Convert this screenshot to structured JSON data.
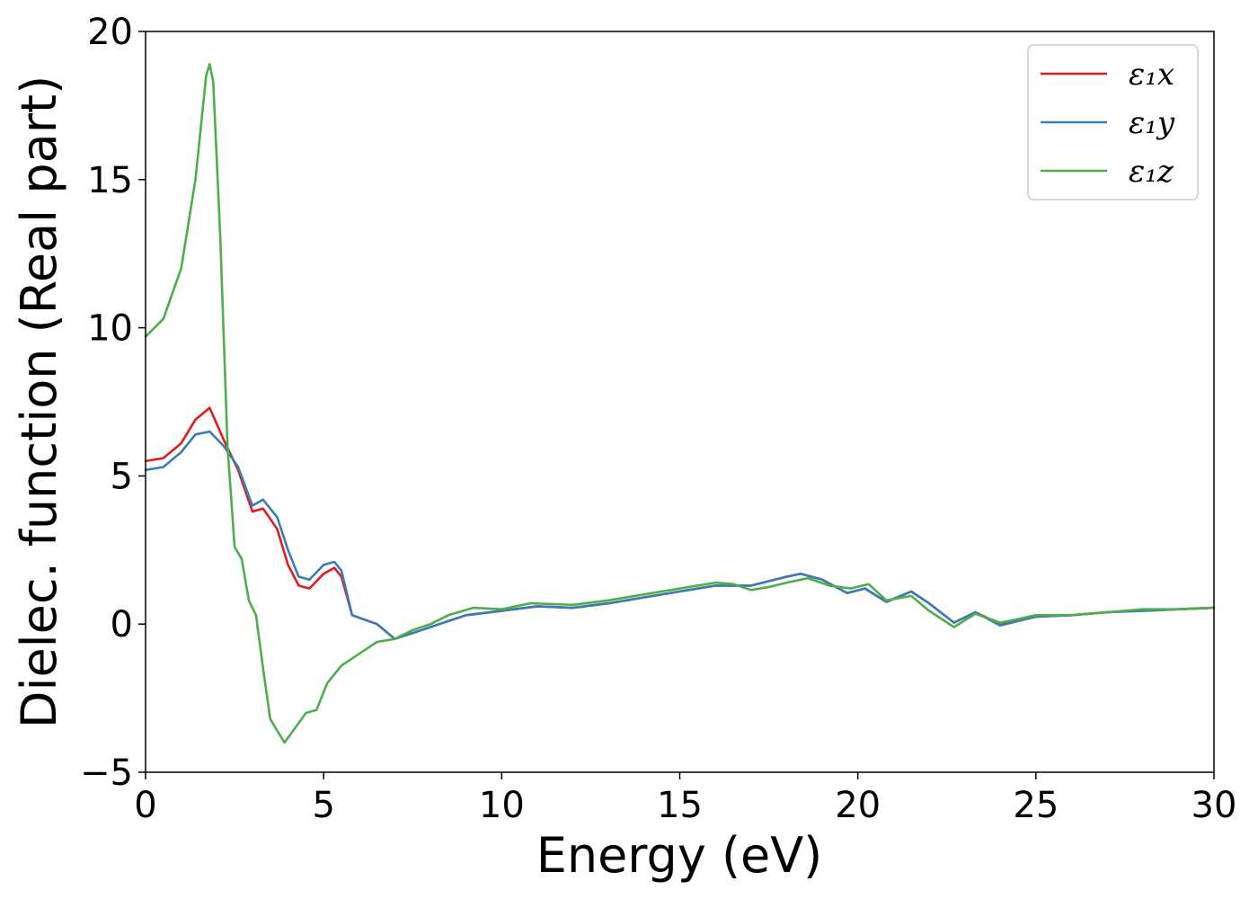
{
  "chart_data": {
    "type": "line",
    "title": "",
    "xlabel": "Energy (eV)",
    "ylabel": "Dielec. function (Real part)",
    "xlim": [
      0,
      30
    ],
    "ylim": [
      -5,
      20
    ],
    "xticks": [
      0,
      5,
      10,
      15,
      20,
      25,
      30
    ],
    "yticks": [
      -5,
      0,
      5,
      10,
      15,
      20
    ],
    "xtick_labels": [
      "0",
      "5",
      "10",
      "15",
      "20",
      "25",
      "30"
    ],
    "ytick_labels": [
      "−5",
      "0",
      "5",
      "10",
      "15",
      "20"
    ],
    "grid": false,
    "legend_position": "top-right",
    "series": [
      {
        "name": "ε₁x",
        "color": "#e41a1c",
        "points": [
          [
            0,
            5.5
          ],
          [
            0.5,
            5.6
          ],
          [
            1,
            6.1
          ],
          [
            1.4,
            6.9
          ],
          [
            1.8,
            7.3
          ],
          [
            2.2,
            6.2
          ],
          [
            2.6,
            5.2
          ],
          [
            3.0,
            3.8
          ],
          [
            3.3,
            3.9
          ],
          [
            3.7,
            3.2
          ],
          [
            4.0,
            2.0
          ],
          [
            4.3,
            1.3
          ],
          [
            4.6,
            1.2
          ],
          [
            5.0,
            1.7
          ],
          [
            5.3,
            1.9
          ],
          [
            5.5,
            1.6
          ],
          [
            5.8,
            0.3
          ],
          [
            6.5,
            0.0
          ],
          [
            7.0,
            -0.5
          ],
          [
            7.5,
            -0.3
          ],
          [
            8.0,
            -0.1
          ],
          [
            8.5,
            0.1
          ],
          [
            9.0,
            0.3
          ],
          [
            10,
            0.45
          ],
          [
            11,
            0.6
          ],
          [
            12,
            0.55
          ],
          [
            13,
            0.7
          ],
          [
            14,
            0.9
          ],
          [
            15,
            1.1
          ],
          [
            16,
            1.3
          ],
          [
            17,
            1.3
          ],
          [
            18,
            1.6
          ],
          [
            18.4,
            1.7
          ],
          [
            19,
            1.5
          ],
          [
            19.7,
            1.05
          ],
          [
            20.2,
            1.2
          ],
          [
            20.8,
            0.75
          ],
          [
            21.5,
            1.1
          ],
          [
            22,
            0.7
          ],
          [
            22.7,
            0.05
          ],
          [
            23.3,
            0.4
          ],
          [
            24.0,
            0.0
          ],
          [
            25,
            0.25
          ],
          [
            26,
            0.3
          ],
          [
            27,
            0.4
          ],
          [
            28,
            0.45
          ],
          [
            29,
            0.5
          ],
          [
            30,
            0.55
          ]
        ]
      },
      {
        "name": "ε₁y",
        "color": "#377eb8",
        "points": [
          [
            0,
            5.2
          ],
          [
            0.5,
            5.3
          ],
          [
            1,
            5.8
          ],
          [
            1.4,
            6.4
          ],
          [
            1.8,
            6.5
          ],
          [
            2.2,
            6.0
          ],
          [
            2.6,
            5.3
          ],
          [
            3.0,
            4.0
          ],
          [
            3.3,
            4.2
          ],
          [
            3.7,
            3.6
          ],
          [
            4.0,
            2.5
          ],
          [
            4.3,
            1.6
          ],
          [
            4.6,
            1.5
          ],
          [
            5.0,
            2.0
          ],
          [
            5.3,
            2.1
          ],
          [
            5.5,
            1.8
          ],
          [
            5.8,
            0.3
          ],
          [
            6.5,
            0.0
          ],
          [
            7.0,
            -0.5
          ],
          [
            7.5,
            -0.3
          ],
          [
            8.0,
            -0.1
          ],
          [
            8.5,
            0.1
          ],
          [
            9.0,
            0.3
          ],
          [
            10,
            0.45
          ],
          [
            11,
            0.6
          ],
          [
            12,
            0.55
          ],
          [
            13,
            0.7
          ],
          [
            14,
            0.9
          ],
          [
            15,
            1.1
          ],
          [
            16,
            1.3
          ],
          [
            17,
            1.3
          ],
          [
            18,
            1.6
          ],
          [
            18.4,
            1.7
          ],
          [
            19,
            1.5
          ],
          [
            19.7,
            1.05
          ],
          [
            20.2,
            1.2
          ],
          [
            20.8,
            0.75
          ],
          [
            21.5,
            1.1
          ],
          [
            22,
            0.7
          ],
          [
            22.7,
            0.05
          ],
          [
            23.3,
            0.4
          ],
          [
            24.0,
            -0.05
          ],
          [
            25,
            0.25
          ],
          [
            26,
            0.3
          ],
          [
            27,
            0.4
          ],
          [
            28,
            0.45
          ],
          [
            29,
            0.5
          ],
          [
            30,
            0.55
          ]
        ]
      },
      {
        "name": "ε₁z",
        "color": "#4daf4a",
        "points": [
          [
            0,
            9.7
          ],
          [
            0.5,
            10.3
          ],
          [
            1.0,
            12.0
          ],
          [
            1.4,
            15.0
          ],
          [
            1.7,
            18.5
          ],
          [
            1.8,
            18.9
          ],
          [
            1.9,
            18.3
          ],
          [
            2.1,
            13.0
          ],
          [
            2.3,
            6.0
          ],
          [
            2.5,
            2.6
          ],
          [
            2.7,
            2.2
          ],
          [
            2.9,
            0.8
          ],
          [
            3.1,
            0.3
          ],
          [
            3.3,
            -1.5
          ],
          [
            3.5,
            -3.2
          ],
          [
            3.7,
            -3.6
          ],
          [
            3.9,
            -4.0
          ],
          [
            4.2,
            -3.5
          ],
          [
            4.5,
            -3.0
          ],
          [
            4.8,
            -2.9
          ],
          [
            5.1,
            -2.0
          ],
          [
            5.5,
            -1.4
          ],
          [
            6.0,
            -1.0
          ],
          [
            6.5,
            -0.6
          ],
          [
            7.0,
            -0.5
          ],
          [
            7.5,
            -0.2
          ],
          [
            8,
            0.0
          ],
          [
            8.5,
            0.3
          ],
          [
            9.2,
            0.55
          ],
          [
            10,
            0.5
          ],
          [
            10.8,
            0.7
          ],
          [
            12,
            0.65
          ],
          [
            13,
            0.8
          ],
          [
            14,
            1.0
          ],
          [
            15,
            1.2
          ],
          [
            16,
            1.4
          ],
          [
            16.5,
            1.35
          ],
          [
            17,
            1.15
          ],
          [
            17.5,
            1.25
          ],
          [
            18,
            1.4
          ],
          [
            18.6,
            1.55
          ],
          [
            19.2,
            1.3
          ],
          [
            19.8,
            1.2
          ],
          [
            20.3,
            1.35
          ],
          [
            20.8,
            0.8
          ],
          [
            21.5,
            0.95
          ],
          [
            22,
            0.45
          ],
          [
            22.7,
            -0.1
          ],
          [
            23.3,
            0.35
          ],
          [
            24.0,
            0.05
          ],
          [
            25,
            0.3
          ],
          [
            26,
            0.3
          ],
          [
            27,
            0.4
          ],
          [
            28,
            0.5
          ],
          [
            29,
            0.5
          ],
          [
            30,
            0.55
          ]
        ]
      }
    ]
  }
}
